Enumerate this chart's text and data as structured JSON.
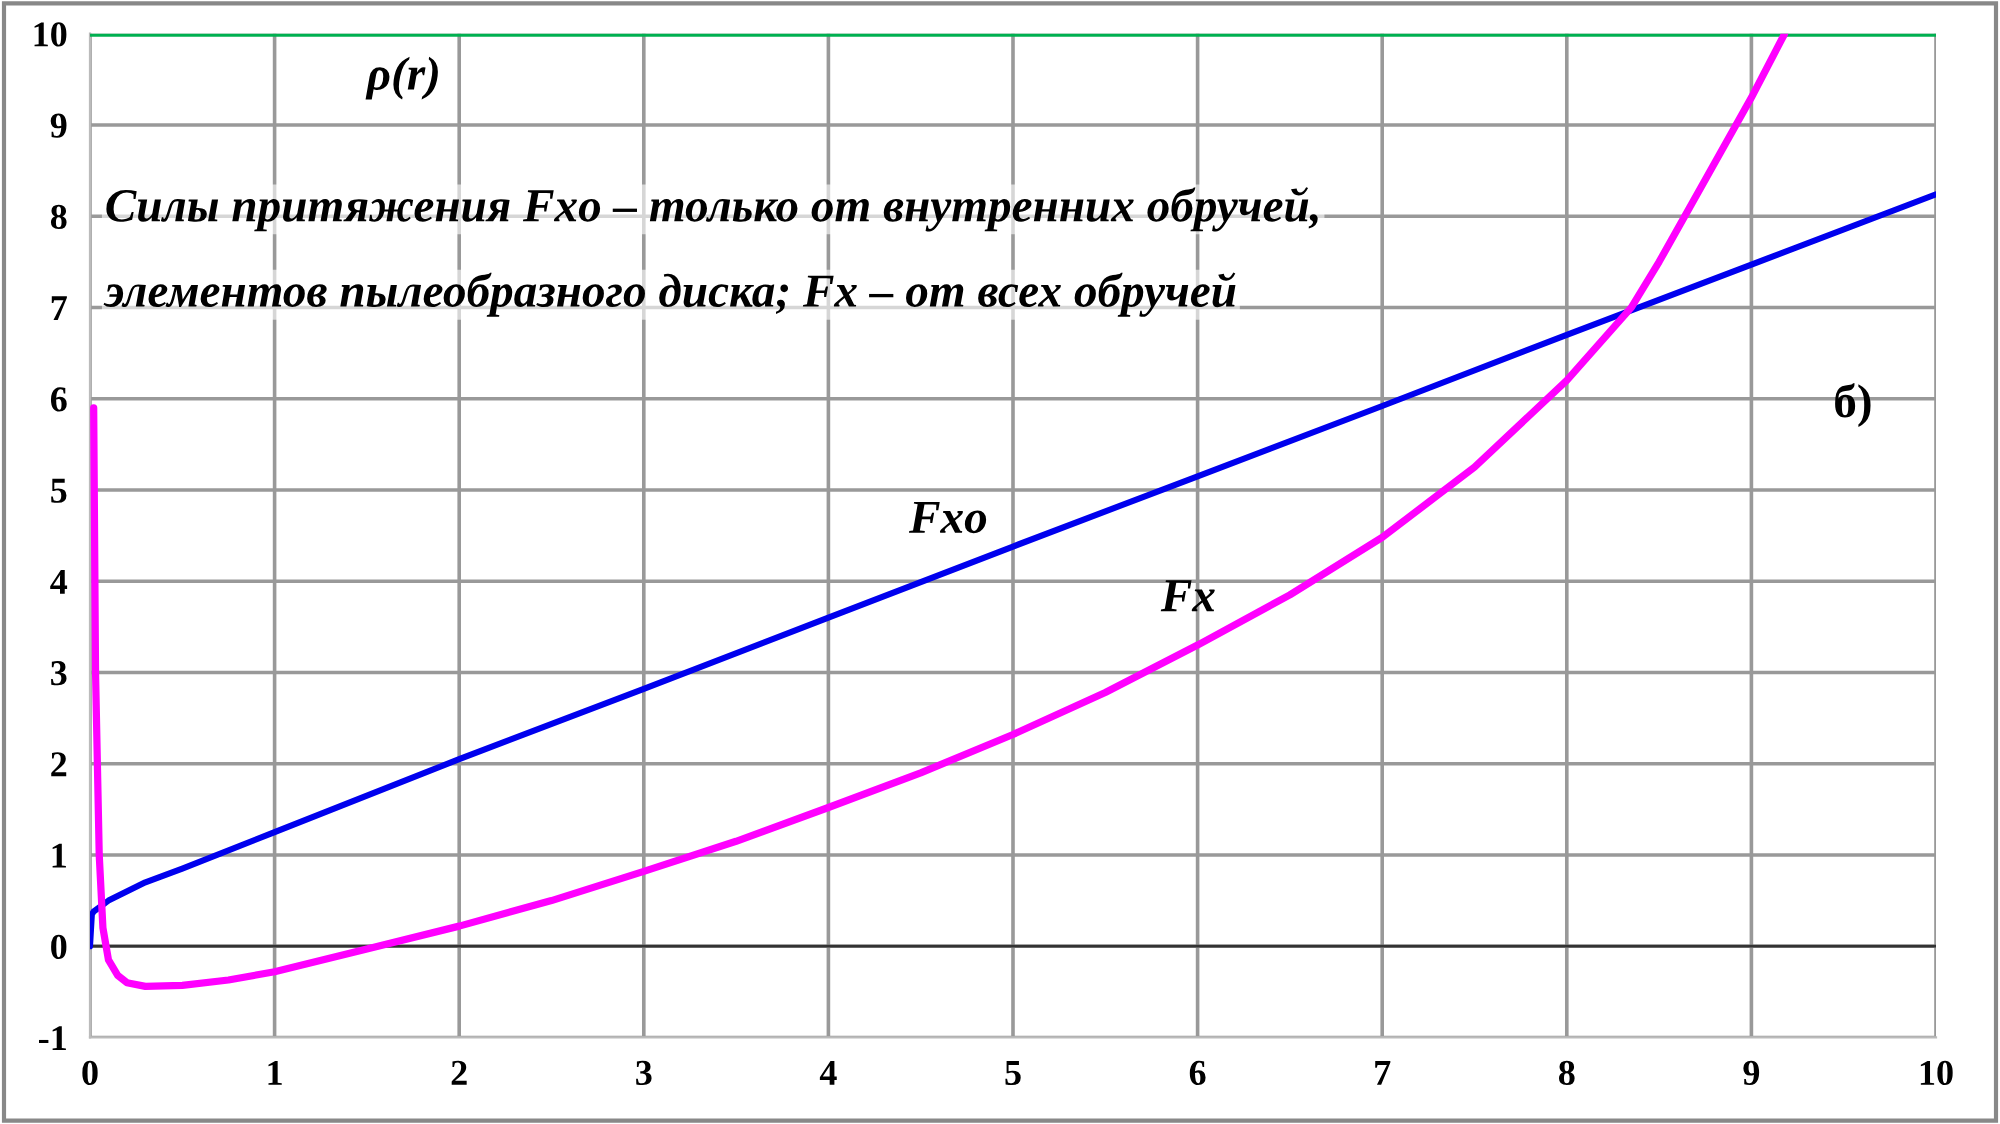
{
  "chart_data": {
    "type": "line",
    "xlim": [
      0,
      10
    ],
    "ylim": [
      -1,
      10
    ],
    "xticks": [
      0,
      1,
      2,
      3,
      4,
      5,
      6,
      7,
      8,
      9,
      10
    ],
    "yticks": [
      -1,
      0,
      1,
      2,
      3,
      4,
      5,
      6,
      7,
      8,
      9,
      10
    ],
    "grid": true,
    "marker": "none",
    "line_style": "solid",
    "series": [
      {
        "name": "ρ(r)",
        "color": "#00b050",
        "x": [
          0,
          10
        ],
        "values": [
          10,
          10
        ]
      },
      {
        "name": "Fxo",
        "color": "#0000ee",
        "x": [
          0,
          0.01,
          0.02,
          0.1,
          0.3,
          0.5,
          1,
          2,
          3,
          4,
          5,
          6,
          7,
          8,
          9,
          10
        ],
        "values": [
          0,
          0.35,
          0.38,
          0.5,
          0.7,
          0.85,
          1.25,
          2.05,
          2.82,
          3.6,
          4.38,
          5.15,
          5.92,
          6.7,
          7.47,
          8.24
        ]
      },
      {
        "name": "Fx",
        "color": "#ff00ff",
        "x": [
          0.02,
          0.03,
          0.05,
          0.07,
          0.1,
          0.15,
          0.2,
          0.3,
          0.5,
          0.75,
          1,
          1.5,
          2,
          2.5,
          3,
          3.5,
          4,
          4.5,
          5,
          5.5,
          6,
          6.5,
          7,
          7.5,
          8,
          8.35,
          8.5,
          8.75,
          9,
          9.18
        ],
        "values": [
          5.9,
          3,
          1,
          0.2,
          -0.15,
          -0.32,
          -0.4,
          -0.44,
          -0.43,
          -0.37,
          -0.28,
          -0.03,
          0.22,
          0.5,
          0.82,
          1.15,
          1.52,
          1.9,
          2.32,
          2.78,
          3.3,
          3.85,
          4.48,
          5.25,
          6.2,
          7.0,
          7.5,
          8.4,
          9.3,
          10
        ]
      }
    ],
    "annotations": [
      "Силы притяжения Fxo – только от внутренних обручей,",
      "элементов пылеобразного диска; Fx – от всех обручей",
      "б)"
    ]
  }
}
